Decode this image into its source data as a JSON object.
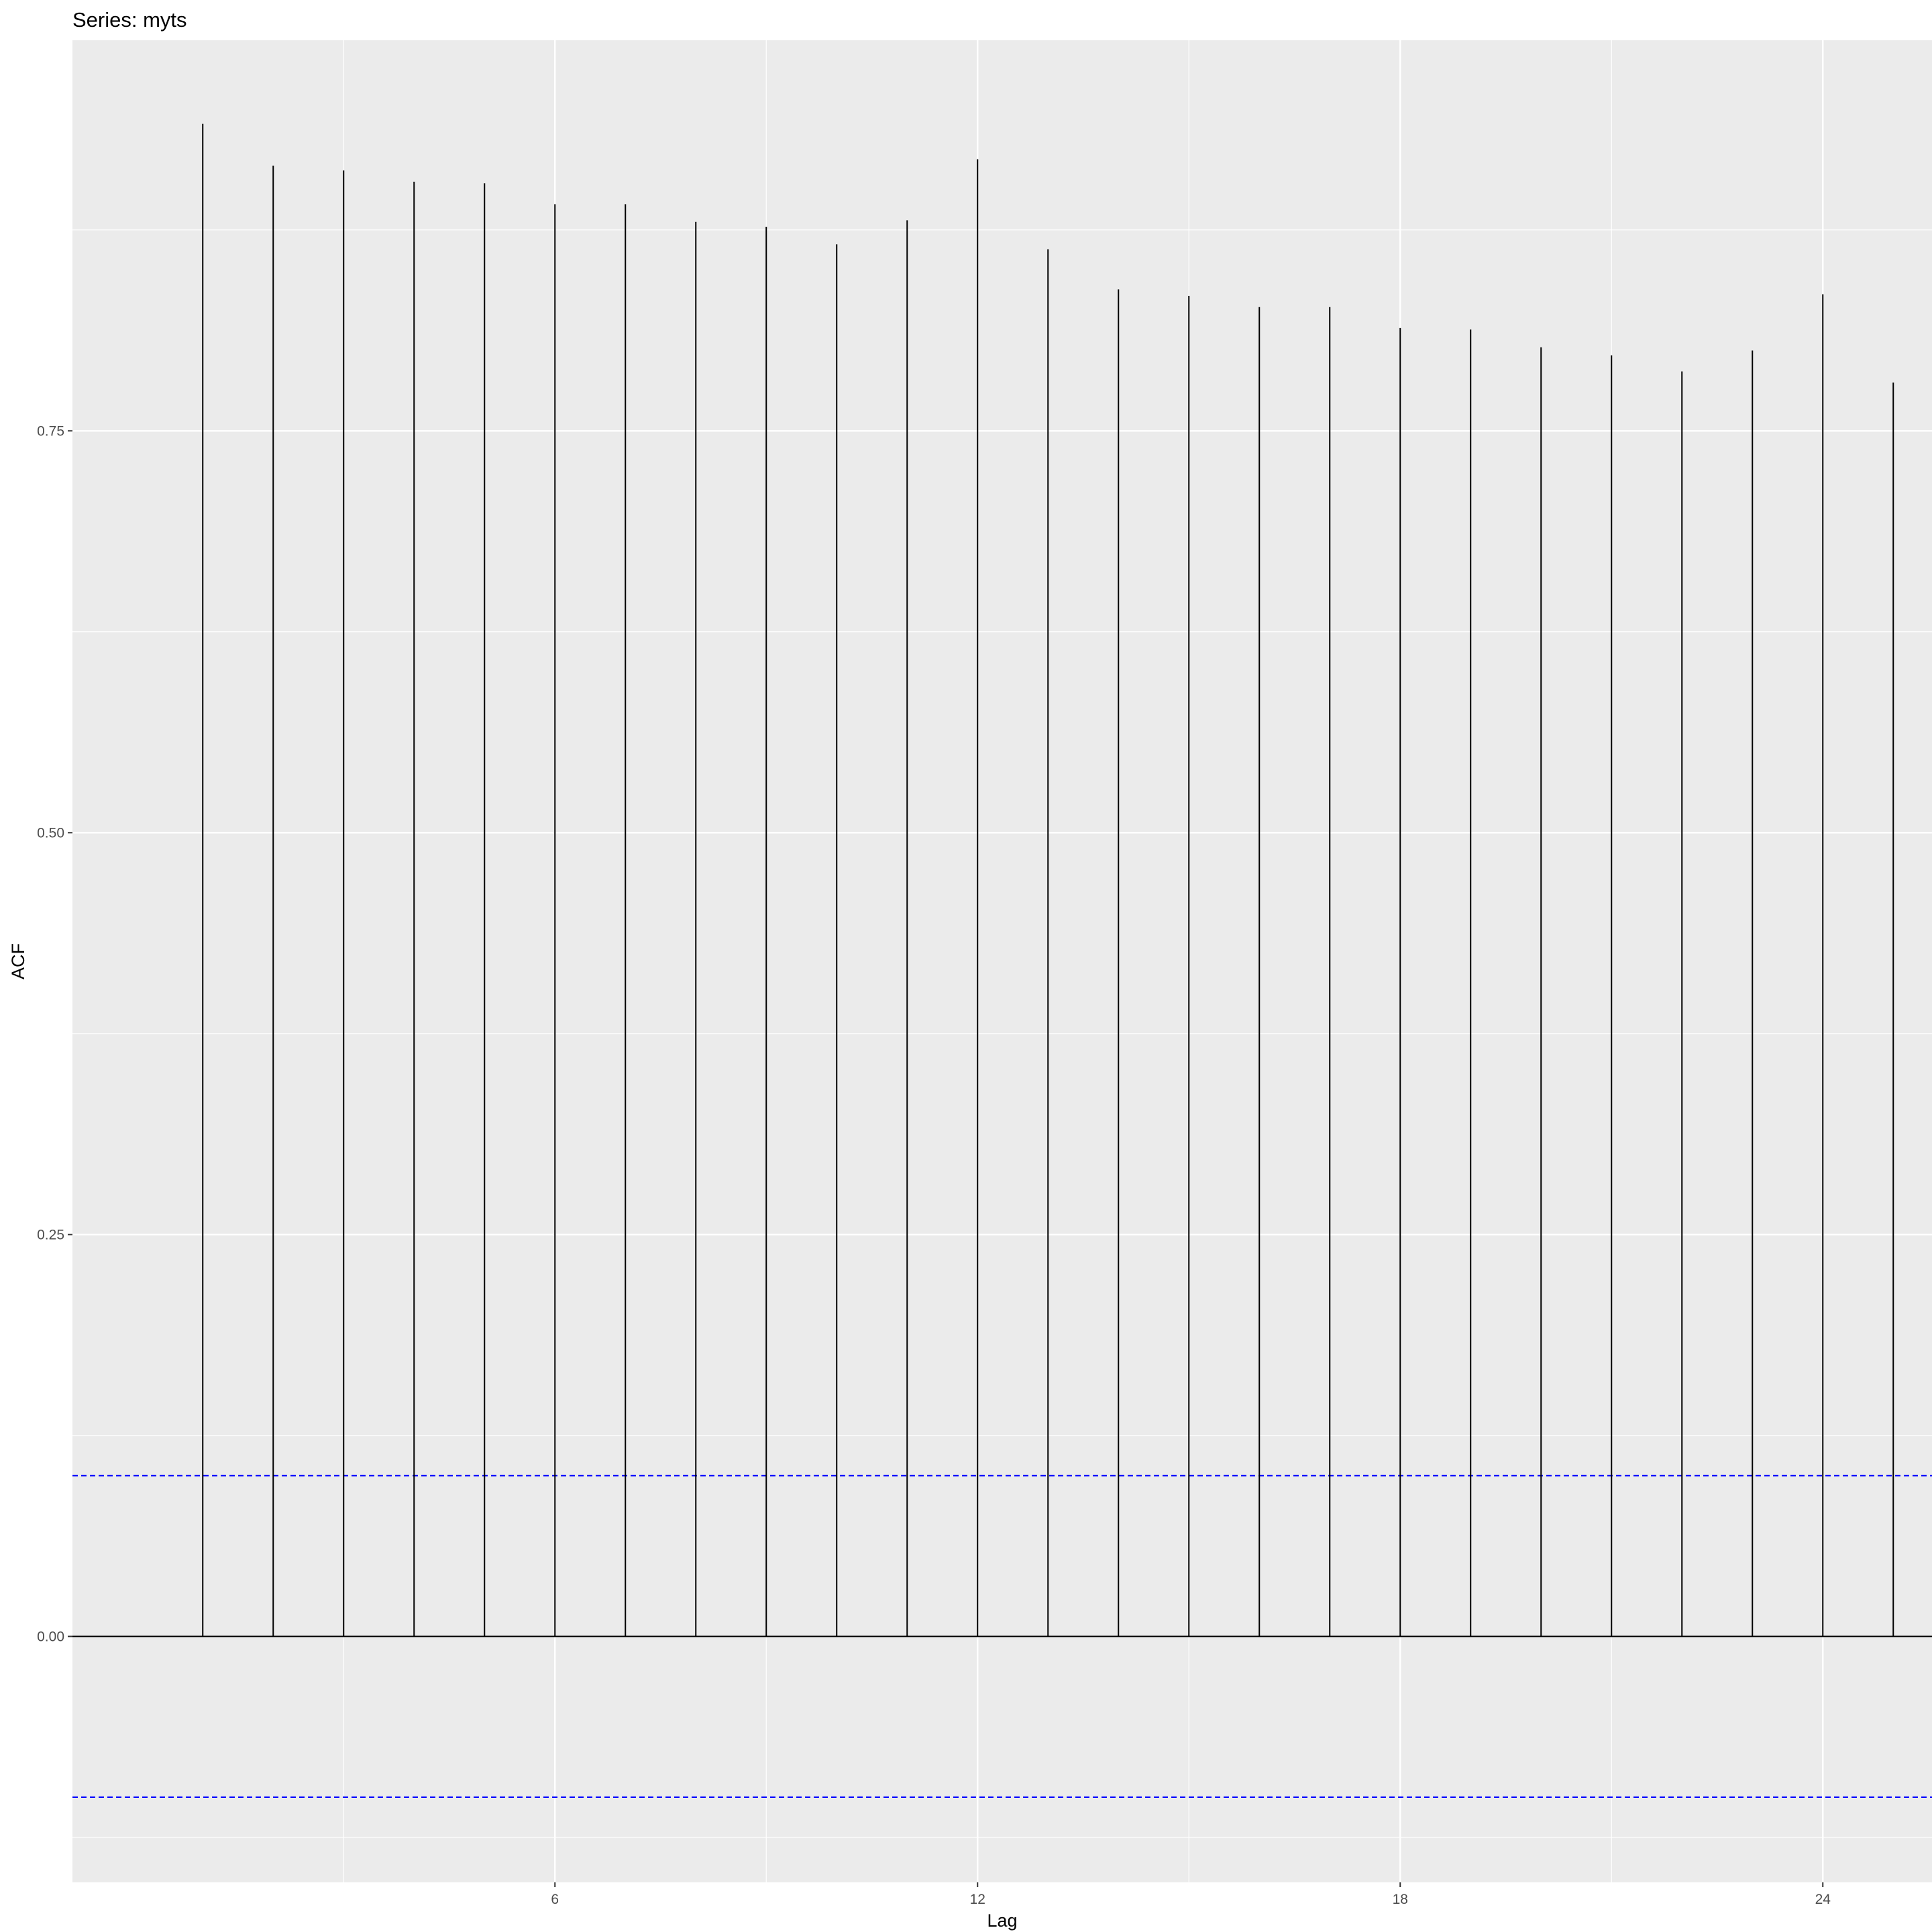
{
  "chart_data": {
    "type": "bar",
    "title": "Series: myts",
    "xlabel": "Lag",
    "ylabel": "ACF",
    "x": [
      1,
      2,
      3,
      4,
      5,
      6,
      7,
      8,
      9,
      10,
      11,
      12,
      13,
      14,
      15,
      16,
      17,
      18,
      19,
      20,
      21,
      22,
      23,
      24,
      25
    ],
    "values": [
      0.941,
      0.915,
      0.912,
      0.905,
      0.904,
      0.891,
      0.891,
      0.88,
      0.877,
      0.866,
      0.881,
      0.919,
      0.863,
      0.838,
      0.834,
      0.827,
      0.827,
      0.814,
      0.813,
      0.802,
      0.797,
      0.787,
      0.8,
      0.835,
      0.78
    ],
    "xlim": [
      -0.85,
      25.55
    ],
    "ylim": [
      -0.153,
      0.993
    ],
    "x_ticks": [
      6,
      12,
      18,
      24
    ],
    "x_tick_labels": [
      "6",
      "12",
      "18",
      "24"
    ],
    "y_ticks": [
      0.0,
      0.25,
      0.5,
      0.75
    ],
    "y_tick_labels": [
      "0.00",
      "0.25",
      "0.50",
      "0.75"
    ],
    "confidence_bound": 0.1,
    "grid": true,
    "colors": {
      "panel_background": "#ebebeb",
      "grid": "#ffffff",
      "bars": "#000000",
      "confidence_lines": "#0000ff"
    }
  }
}
